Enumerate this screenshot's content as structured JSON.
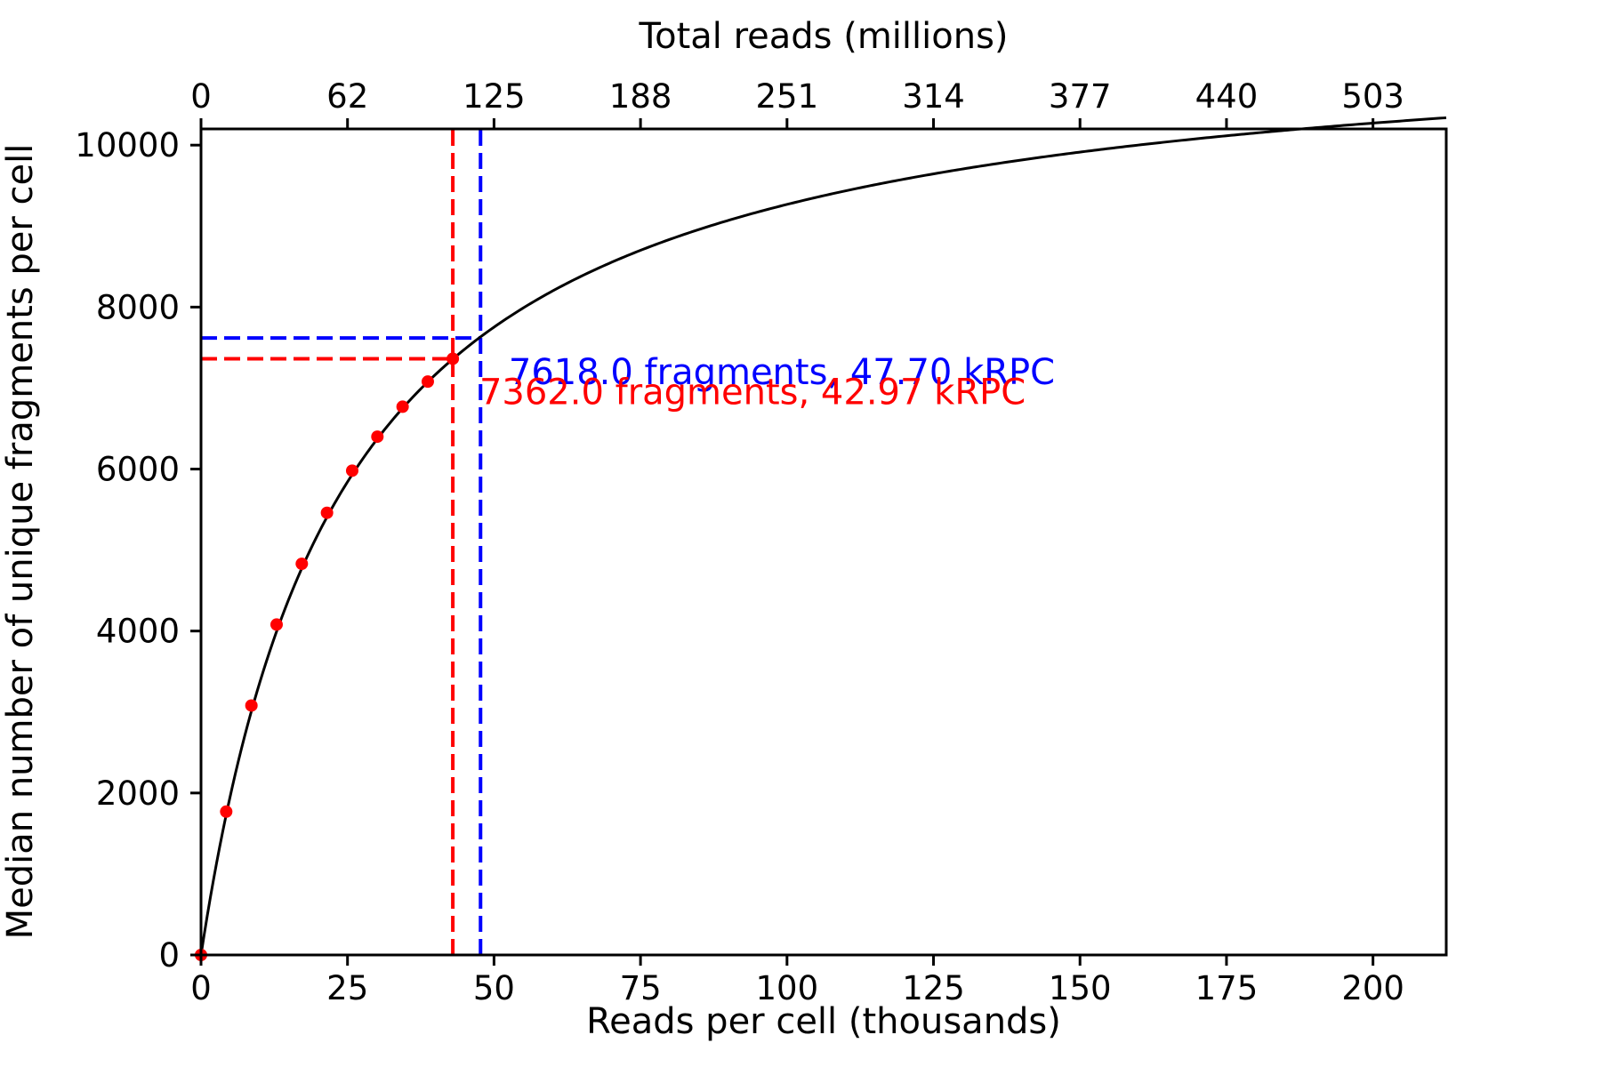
{
  "chart_data": {
    "type": "scatter",
    "title": "",
    "xlabel": "Reads per cell (thousands)",
    "ylabel": "Median number of unique fragments per cell",
    "x2label": "Total reads (millions)",
    "xlim": [
      0,
      212.5
    ],
    "ylim": [
      0,
      10200
    ],
    "grid": false,
    "x_ticks": [
      0,
      25,
      50,
      75,
      100,
      125,
      150,
      175,
      200
    ],
    "y_ticks": [
      0,
      2000,
      4000,
      6000,
      8000,
      10000
    ],
    "x2_tick_labels": [
      "0",
      "62",
      "125",
      "188",
      "251",
      "314",
      "377",
      "440",
      "503"
    ],
    "x2_tick_positions": [
      0,
      25,
      50,
      75,
      100,
      125,
      150,
      175,
      200
    ],
    "series": [
      {
        "kind": "scatter",
        "color": "#ff0000",
        "x": [
          0,
          4.3,
          8.6,
          12.9,
          17.2,
          21.5,
          25.8,
          30.1,
          34.4,
          38.7,
          42.97
        ],
        "y": [
          0,
          1770,
          3080,
          4080,
          4830,
          5460,
          5980,
          6400,
          6770,
          7080,
          7362
        ]
      },
      {
        "kind": "fit",
        "color": "#000000",
        "model": {
          "ymax": 11520,
          "k": 24.3
        },
        "x_range": [
          0,
          212.5
        ]
      }
    ],
    "annotations": [
      {
        "text": "7618.0 fragments, 47.70 kRPC",
        "color": "#0000ff",
        "x": 47.7,
        "y": 7618,
        "label_x": 52.5,
        "label_y": 7050
      },
      {
        "text": "7362.0 fragments, 42.97 kRPC",
        "color": "#ff0000",
        "x": 42.97,
        "y": 7362,
        "label_x": 47.5,
        "label_y": 6800
      }
    ]
  }
}
